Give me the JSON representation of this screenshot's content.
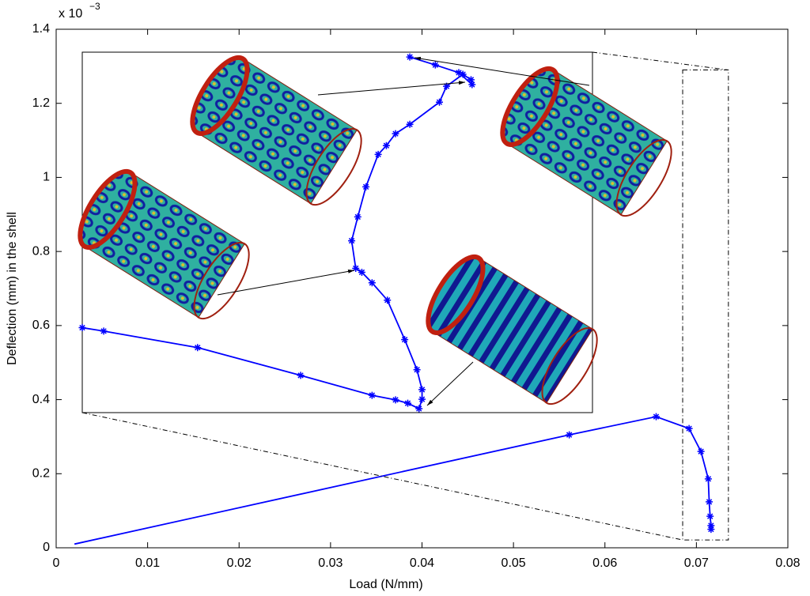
{
  "chart_data": [
    {
      "type": "line",
      "x_label": "Load (N/mm)",
      "y_label": "Deflection (mm) in the shell",
      "y_multiplier": "x 10",
      "y_multiplier_exp": "−3",
      "xlim": [
        0,
        0.08
      ],
      "xticks": [
        0,
        0.01,
        0.02,
        0.03,
        0.04,
        0.05,
        0.06,
        0.07,
        0.08
      ],
      "ylim": [
        0,
        1.4
      ],
      "yticks": [
        0,
        0.2,
        0.4,
        0.6,
        0.8,
        1,
        1.2,
        1.4
      ],
      "series": [
        {
          "color": "#0000ff",
          "x": [
            0.002,
            0.0561,
            0.0656,
            0.0692,
            0.0705,
            0.0713,
            0.0714,
            0.0715,
            0.0716,
            0.0716
          ],
          "values": [
            0.01,
            0.305,
            0.354,
            0.322,
            0.26,
            0.186,
            0.124,
            0.085,
            0.06,
            0.05
          ]
        }
      ]
    },
    {
      "type": "inset-line",
      "xlim": [
        0.0685,
        0.0735
      ],
      "ylim": [
        0.021,
        1.29
      ],
      "series": [
        {
          "color": "#0000ff",
          "x": [
            0.0685,
            0.06871,
            0.06963,
            0.07064,
            0.07134,
            0.07157,
            0.07169,
            0.0718,
            0.07183,
            0.07183,
            0.07178,
            0.07166,
            0.07149,
            0.07134,
            0.07124,
            0.07118,
            0.07114,
            0.0712,
            0.07128,
            0.0714,
            0.07148,
            0.07157,
            0.07171,
            0.072,
            0.07207,
            0.07223,
            0.07231,
            0.07232,
            0.07219,
            0.07196,
            0.07171
          ],
          "values": [
            0.32,
            0.308,
            0.25,
            0.152,
            0.082,
            0.066,
            0.054,
            0.035,
            0.068,
            0.102,
            0.172,
            0.278,
            0.417,
            0.478,
            0.515,
            0.529,
            0.626,
            0.71,
            0.816,
            0.93,
            0.961,
            1.003,
            1.036,
            1.114,
            1.17,
            1.212,
            1.193,
            1.176,
            1.218,
            1.245,
            1.273
          ]
        }
      ]
    }
  ]
}
